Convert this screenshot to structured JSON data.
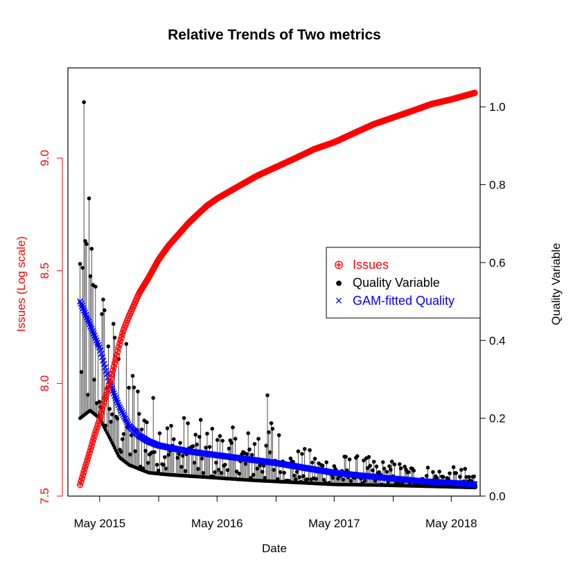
{
  "chart_data": {
    "type": "line",
    "title": "Relative Trends of Two metrics",
    "xlabel": "Date",
    "ylabel_left": "Issues (Log scale)",
    "ylabel_right": "Quality Variable",
    "x_range": [
      "2015-01-22",
      "2018-07-30"
    ],
    "x_ticks": [
      "2015-05-01",
      "2015-11-01",
      "2016-05-01",
      "2016-11-01",
      "2017-05-01",
      "2017-11-01",
      "2018-05-01"
    ],
    "x_tick_labels": [
      "May 2015",
      "",
      "May 2016",
      "",
      "May 2017",
      "",
      "May 2018"
    ],
    "y_left": {
      "ylim": [
        7.5,
        9.4
      ],
      "ticks": [
        7.5,
        8.0,
        8.5,
        9.0
      ],
      "tick_labels": [
        "7.5",
        "8.0",
        "8.5",
        "9.0"
      ],
      "color": "#ff0000"
    },
    "y_right": {
      "ylim": [
        0.0,
        1.1
      ],
      "ticks": [
        0.0,
        0.2,
        0.4,
        0.6,
        0.8,
        1.0
      ],
      "tick_labels": [
        "0.0",
        "0.2",
        "0.4",
        "0.6",
        "0.8",
        "1.0"
      ],
      "color": "#000000"
    },
    "series": [
      {
        "name": "Issues",
        "axis": "left",
        "color": "#ff0000",
        "marker": "circle-plus",
        "points": [
          [
            "2015-03-01",
            7.55
          ],
          [
            "2015-03-15",
            7.62
          ],
          [
            "2015-04-01",
            7.7
          ],
          [
            "2015-04-15",
            7.77
          ],
          [
            "2015-05-01",
            7.84
          ],
          [
            "2015-05-15",
            7.92
          ],
          [
            "2015-06-01",
            8.0
          ],
          [
            "2015-06-15",
            8.08
          ],
          [
            "2015-07-01",
            8.17
          ],
          [
            "2015-07-15",
            8.24
          ],
          [
            "2015-08-01",
            8.3
          ],
          [
            "2015-09-01",
            8.4
          ],
          [
            "2015-10-01",
            8.47
          ],
          [
            "2015-11-01",
            8.55
          ],
          [
            "2015-12-01",
            8.61
          ],
          [
            "2016-01-01",
            8.66
          ],
          [
            "2016-02-01",
            8.71
          ],
          [
            "2016-03-01",
            8.75
          ],
          [
            "2016-04-01",
            8.79
          ],
          [
            "2016-05-01",
            8.82
          ],
          [
            "2016-07-01",
            8.87
          ],
          [
            "2016-09-01",
            8.92
          ],
          [
            "2016-11-01",
            8.96
          ],
          [
            "2017-01-01",
            9.0
          ],
          [
            "2017-03-01",
            9.04
          ],
          [
            "2017-05-01",
            9.07
          ],
          [
            "2017-07-01",
            9.11
          ],
          [
            "2017-09-01",
            9.15
          ],
          [
            "2017-11-01",
            9.18
          ],
          [
            "2018-01-01",
            9.21
          ],
          [
            "2018-03-01",
            9.24
          ],
          [
            "2018-05-01",
            9.26
          ],
          [
            "2018-07-15",
            9.29
          ]
        ]
      },
      {
        "name": "Quality Variable",
        "axis": "right",
        "color": "#000000",
        "marker": "filled-circle",
        "shape": "spiky daily series decaying from about 1.0 toward 0.02–0.06; baseline near 0.02 by 2018",
        "max_points": [
          [
            "2015-03-05",
            0.98
          ],
          [
            "2015-03-20",
            1.05
          ],
          [
            "2015-04-01",
            0.83
          ],
          [
            "2015-04-15",
            0.7
          ],
          [
            "2015-05-01",
            0.62
          ],
          [
            "2015-06-01",
            0.52
          ],
          [
            "2015-07-01",
            0.44
          ],
          [
            "2015-08-01",
            0.39
          ],
          [
            "2015-09-01",
            0.32
          ],
          [
            "2015-10-01",
            0.28
          ],
          [
            "2015-11-01",
            0.26
          ],
          [
            "2015-12-01",
            0.22
          ],
          [
            "2016-02-01",
            0.21
          ],
          [
            "2016-04-01",
            0.19
          ],
          [
            "2016-06-01",
            0.18
          ],
          [
            "2016-08-01",
            0.17
          ],
          [
            "2016-10-01",
            0.28
          ],
          [
            "2016-12-01",
            0.13
          ],
          [
            "2017-03-01",
            0.12
          ],
          [
            "2017-06-01",
            0.11
          ],
          [
            "2017-09-01",
            0.1
          ],
          [
            "2017-12-01",
            0.09
          ],
          [
            "2018-03-01",
            0.08
          ],
          [
            "2018-07-15",
            0.07
          ]
        ],
        "min_points": [
          [
            "2015-03-01",
            0.2
          ],
          [
            "2015-04-01",
            0.22
          ],
          [
            "2015-05-01",
            0.2
          ],
          [
            "2015-06-01",
            0.15
          ],
          [
            "2015-07-01",
            0.1
          ],
          [
            "2015-08-01",
            0.08
          ],
          [
            "2015-10-01",
            0.06
          ],
          [
            "2015-12-01",
            0.055
          ],
          [
            "2016-03-01",
            0.05
          ],
          [
            "2016-06-01",
            0.045
          ],
          [
            "2016-09-01",
            0.04
          ],
          [
            "2017-01-01",
            0.035
          ],
          [
            "2017-05-01",
            0.03
          ],
          [
            "2017-10-01",
            0.028
          ],
          [
            "2018-03-01",
            0.025
          ],
          [
            "2018-07-15",
            0.022
          ]
        ]
      },
      {
        "name": "GAM-fitted Quality",
        "axis": "right",
        "color": "#0000ff",
        "marker": "cross",
        "points": [
          [
            "2015-03-01",
            0.5
          ],
          [
            "2015-04-01",
            0.44
          ],
          [
            "2015-05-01",
            0.38
          ],
          [
            "2015-06-01",
            0.29
          ],
          [
            "2015-07-01",
            0.23
          ],
          [
            "2015-08-01",
            0.18
          ],
          [
            "2015-09-01",
            0.155
          ],
          [
            "2015-10-01",
            0.14
          ],
          [
            "2015-11-01",
            0.13
          ],
          [
            "2015-12-01",
            0.125
          ],
          [
            "2016-02-01",
            0.115
          ],
          [
            "2016-05-01",
            0.105
          ],
          [
            "2016-08-01",
            0.095
          ],
          [
            "2016-11-01",
            0.085
          ],
          [
            "2017-02-01",
            0.072
          ],
          [
            "2017-05-01",
            0.06
          ],
          [
            "2017-08-01",
            0.052
          ],
          [
            "2017-11-01",
            0.045
          ],
          [
            "2018-02-01",
            0.038
          ],
          [
            "2018-05-01",
            0.034
          ],
          [
            "2018-07-15",
            0.03
          ]
        ]
      }
    ],
    "legend": {
      "placement": "right-middle",
      "entries": [
        {
          "label": "Issues",
          "symbol": "⊕",
          "color": "#ff0000"
        },
        {
          "label": "Quality Variable",
          "symbol": "●",
          "color": "#000000"
        },
        {
          "label": "GAM-fitted Quality",
          "symbol": "×",
          "color": "#0000ff"
        }
      ]
    },
    "grid": false
  }
}
